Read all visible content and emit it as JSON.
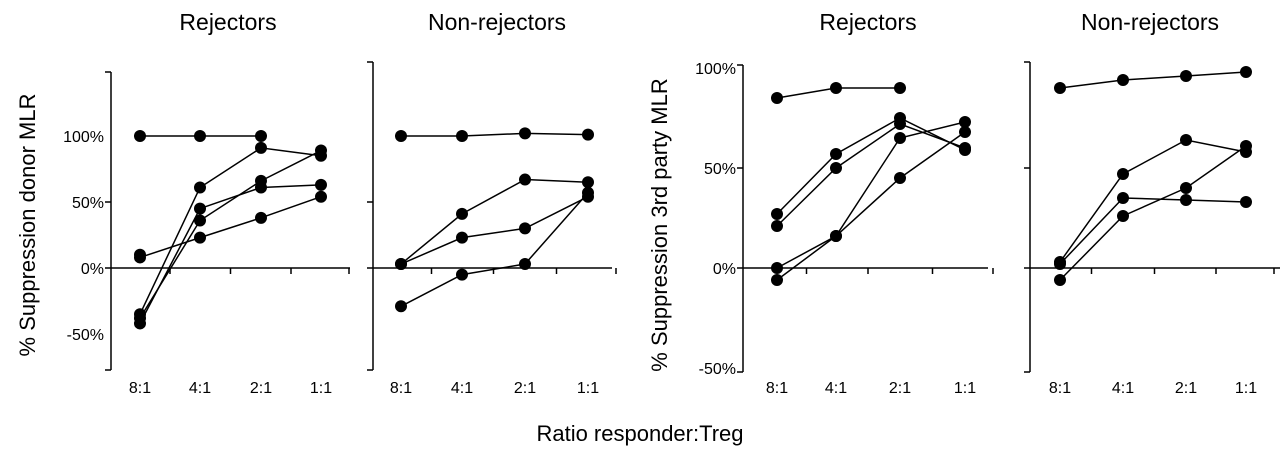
{
  "figure": {
    "xlabel": "Ratio responder:Treg"
  },
  "chart_data": [
    {
      "type": "line",
      "title": "Rejectors",
      "ylabel": "% Suppression donor MLR",
      "categories": [
        "8:1",
        "4:1",
        "2:1",
        "1:1"
      ],
      "ylim": [
        -50,
        100
      ],
      "yticks": [
        "100%",
        "50%",
        "0%",
        "-50%"
      ],
      "series": [
        {
          "values": [
            100,
            100,
            100,
            null
          ]
        },
        {
          "values": [
            -35,
            61,
            91,
            85
          ]
        },
        {
          "values": [
            -38,
            36,
            66,
            89
          ]
        },
        {
          "values": [
            -42,
            45,
            61,
            63
          ]
        },
        {
          "values": [
            8,
            23,
            38,
            54
          ]
        },
        {
          "values": [
            10,
            null,
            null,
            null
          ]
        }
      ]
    },
    {
      "type": "line",
      "title": "Non-rejectors",
      "categories": [
        "8:1",
        "4:1",
        "2:1",
        "1:1"
      ],
      "ylim": [
        -50,
        100
      ],
      "series": [
        {
          "values": [
            100,
            100,
            102,
            101
          ]
        },
        {
          "values": [
            3,
            41,
            67,
            65
          ]
        },
        {
          "values": [
            3,
            23,
            30,
            54
          ]
        },
        {
          "values": [
            -29,
            -5,
            3,
            57
          ]
        }
      ]
    },
    {
      "type": "line",
      "title": "Rejectors",
      "ylabel": "% Suppression 3rd party MLR",
      "categories": [
        "8:1",
        "4:1",
        "2:1",
        "1:1"
      ],
      "ylim": [
        -50,
        100
      ],
      "yticks": [
        "100%",
        "50%",
        "0%",
        "-50%"
      ],
      "series": [
        {
          "values": [
            85,
            90,
            90,
            null
          ]
        },
        {
          "values": [
            27,
            57,
            75,
            59
          ]
        },
        {
          "values": [
            21,
            50,
            72,
            60
          ]
        },
        {
          "values": [
            0,
            16,
            65,
            73
          ]
        },
        {
          "values": [
            -6,
            16,
            45,
            68
          ]
        }
      ]
    },
    {
      "type": "line",
      "title": "Non-rejectors",
      "categories": [
        "8:1",
        "4:1",
        "2:1",
        "1:1"
      ],
      "ylim": [
        -50,
        100
      ],
      "series": [
        {
          "values": [
            90,
            94,
            96,
            98
          ]
        },
        {
          "values": [
            3,
            47,
            64,
            58
          ]
        },
        {
          "values": [
            2,
            35,
            34,
            33
          ]
        },
        {
          "values": [
            -6,
            26,
            40,
            61
          ]
        }
      ]
    }
  ]
}
